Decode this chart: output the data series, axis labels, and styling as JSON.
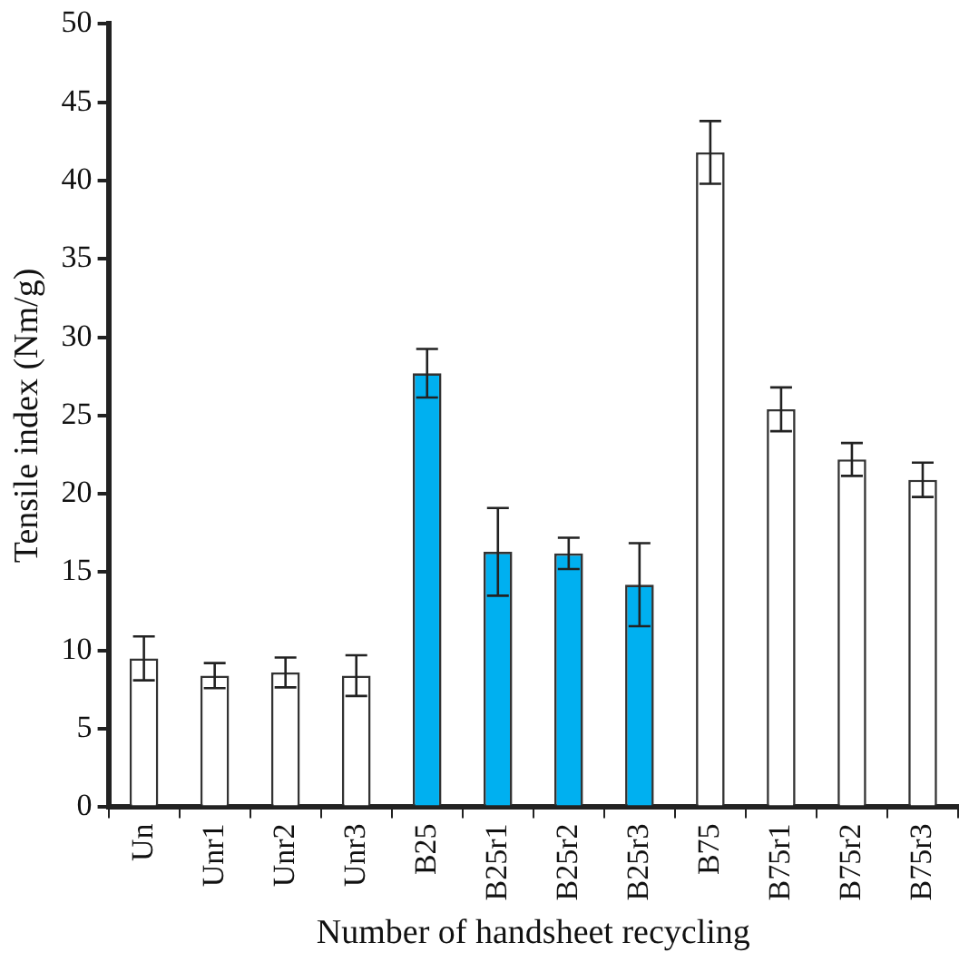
{
  "chart_data": {
    "type": "bar",
    "xlabel": "Number of handsheet recycling",
    "ylabel": "Tensile index (Nm/g)",
    "categories": [
      "Un",
      "Unr1",
      "Unr2",
      "Unr3",
      "B25",
      "B25r1",
      "B25r2",
      "B25r3",
      "B75",
      "B75r1",
      "B75r2",
      "B75r3"
    ],
    "values": [
      9.5,
      8.4,
      8.6,
      8.4,
      27.7,
      16.3,
      16.2,
      14.2,
      41.8,
      25.4,
      22.2,
      20.9
    ],
    "errors": [
      1.4,
      0.8,
      0.95,
      1.3,
      1.55,
      2.8,
      1.0,
      2.65,
      2,
      1.4,
      1.05,
      1.1
    ],
    "colors": [
      "#ffffff",
      "#ffffff",
      "#ffffff",
      "#ffffff",
      "#00b0f0",
      "#00b0f0",
      "#00b0f0",
      "#00b0f0",
      "#ffffff",
      "#ffffff",
      "#ffffff",
      "#ffffff"
    ],
    "ylim": [
      0,
      50
    ],
    "yticks": [
      0,
      5,
      10,
      15,
      20,
      25,
      30,
      35,
      40,
      45,
      50
    ],
    "grid": false,
    "legend": false
  }
}
